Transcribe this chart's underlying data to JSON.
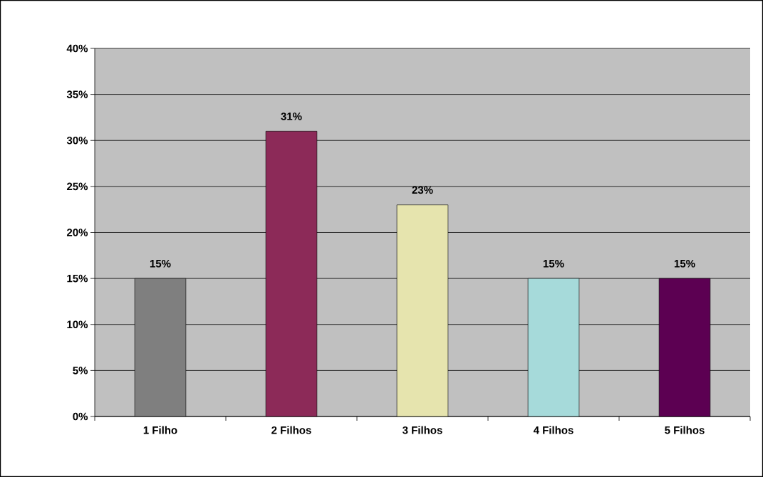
{
  "chart_data": {
    "type": "bar",
    "categories": [
      "1 Filho",
      "2 Filhos",
      "3 Filhos",
      "4 Filhos",
      "5 Filhos"
    ],
    "values": [
      15,
      31,
      23,
      15,
      15
    ],
    "colors": [
      "#7f7f7f",
      "#8c2a58",
      "#e6e4ae",
      "#a6dada",
      "#5c0052"
    ],
    "value_labels": [
      "15%",
      "31%",
      "23%",
      "15%",
      "15%"
    ],
    "ylim": [
      0,
      40
    ],
    "yticks": [
      {
        "value": 0,
        "label": "0%"
      },
      {
        "value": 5,
        "label": "5%"
      },
      {
        "value": 10,
        "label": "10%"
      },
      {
        "value": 15,
        "label": "15%"
      },
      {
        "value": 20,
        "label": "20%"
      },
      {
        "value": 25,
        "label": "25%"
      },
      {
        "value": 30,
        "label": "30%"
      },
      {
        "value": 35,
        "label": "35%"
      },
      {
        "value": 40,
        "label": "40%"
      }
    ],
    "grid": "y"
  }
}
